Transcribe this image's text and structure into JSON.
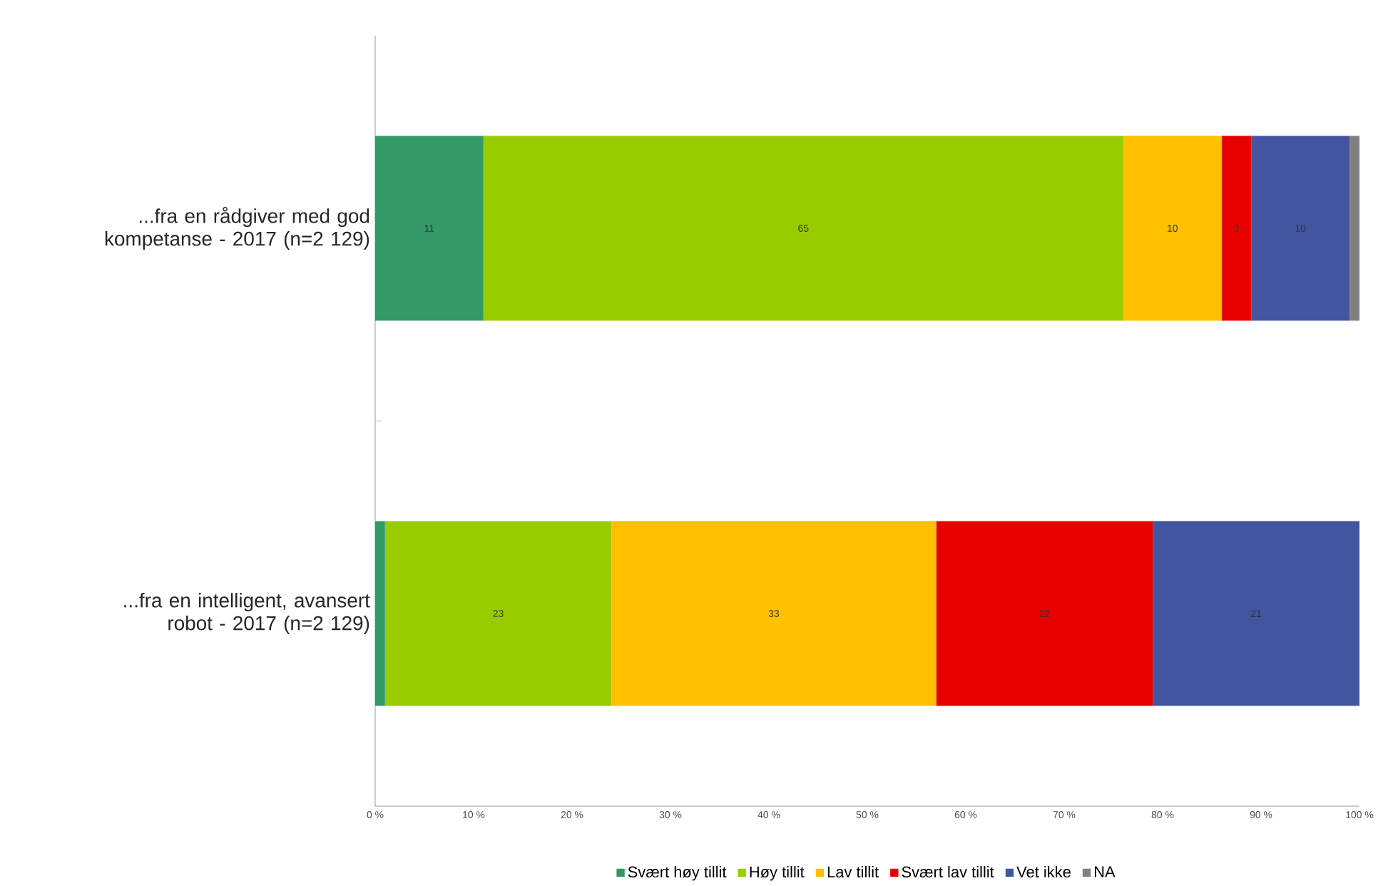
{
  "chart_data": {
    "type": "bar",
    "orientation": "horizontal",
    "stacked": true,
    "categories": [
      "...fra en rådgiver med god kompetanse - 2017 (n=2 129)",
      "...fra en intelligent, avansert robot - 2017 (n=2 129)"
    ],
    "series": [
      {
        "name": "Svært høy tillit",
        "color": "#339966",
        "values": [
          11,
          1
        ],
        "value_labels": [
          "11",
          null
        ]
      },
      {
        "name": "Høy tillit",
        "color": "#99cc00",
        "values": [
          65,
          23
        ],
        "value_labels": [
          "65",
          "23"
        ]
      },
      {
        "name": "Lav tillit",
        "color": "#ffc000",
        "values": [
          10,
          33
        ],
        "value_labels": [
          "10",
          "33"
        ]
      },
      {
        "name": "Svært lav tillit",
        "color": "#e60000",
        "values": [
          3,
          22
        ],
        "value_labels": [
          "3",
          "22"
        ]
      },
      {
        "name": "Vet ikke",
        "color": "#4455a0",
        "values": [
          10,
          21
        ],
        "value_labels": [
          "10",
          "21"
        ]
      },
      {
        "name": "NA",
        "color": "#808080",
        "values": [
          1,
          null
        ],
        "value_labels": [
          null,
          null
        ]
      }
    ],
    "xlim": [
      0,
      100
    ],
    "xticks": [
      {
        "value": 0,
        "label": "0 %"
      },
      {
        "value": 10,
        "label": "10 %"
      },
      {
        "value": 20,
        "label": "20 %"
      },
      {
        "value": 30,
        "label": "30 %"
      },
      {
        "value": 40,
        "label": "40 %"
      },
      {
        "value": 50,
        "label": "50 %"
      },
      {
        "value": 60,
        "label": "60 %"
      },
      {
        "value": 70,
        "label": "70 %"
      },
      {
        "value": 80,
        "label": "80 %"
      },
      {
        "value": 90,
        "label": "90 %"
      },
      {
        "value": 100,
        "label": "100 %"
      }
    ],
    "legend": "bottom",
    "grid": false
  }
}
